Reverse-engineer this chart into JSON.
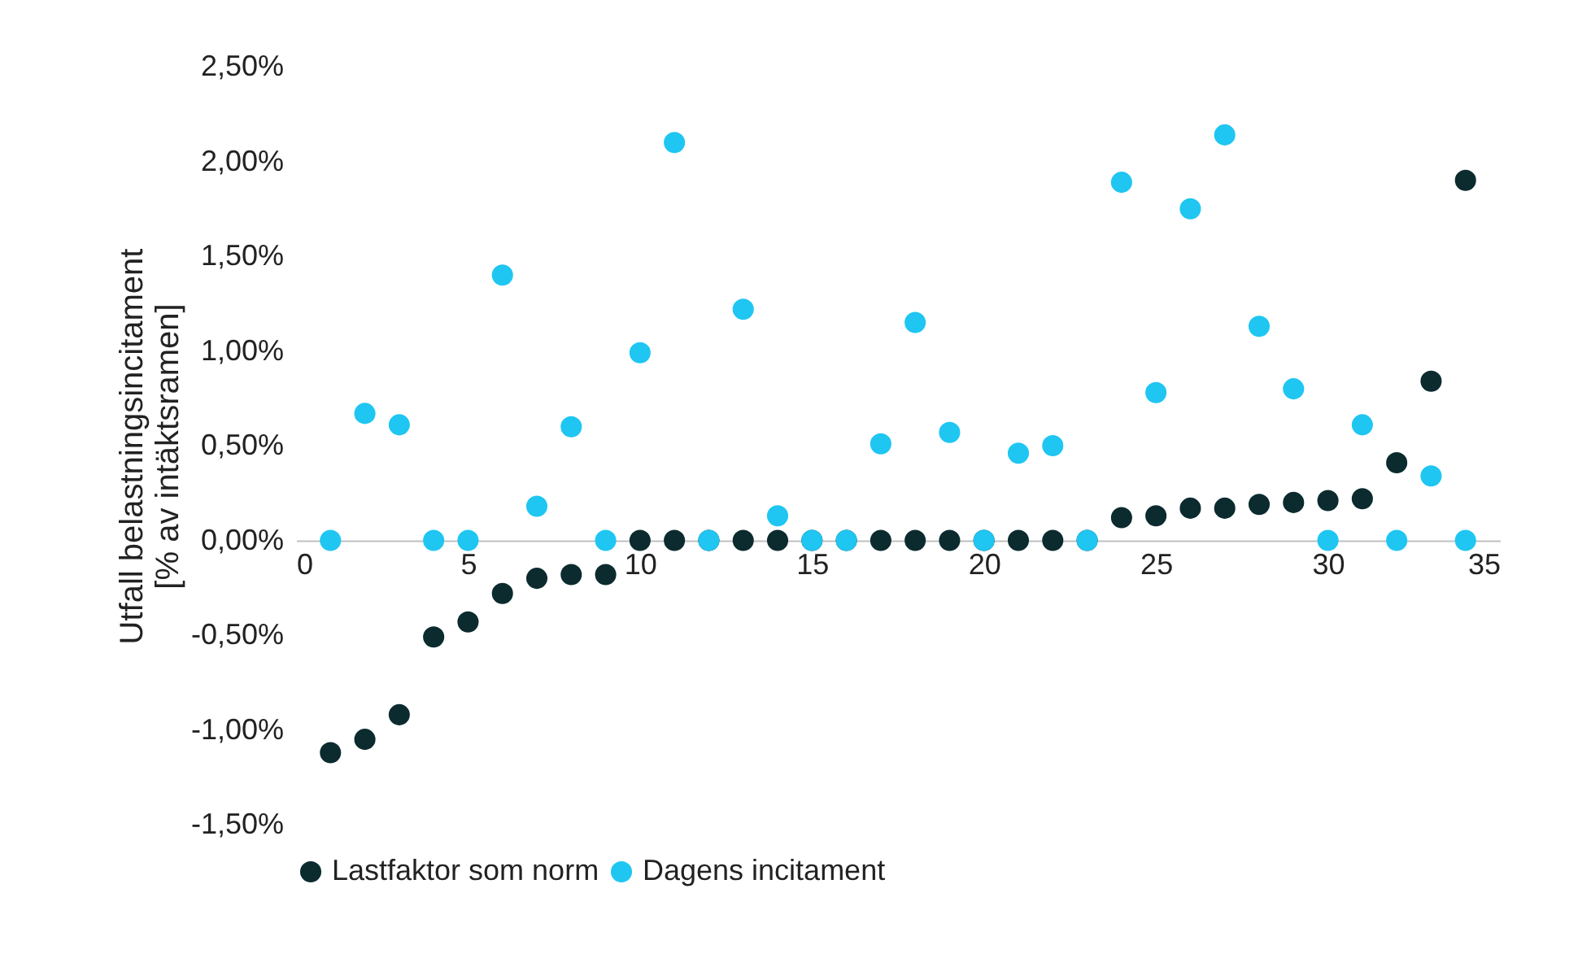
{
  "chart_data": {
    "type": "scatter",
    "ylabel": "Utfall belastningsincitament\n[% av intäktsramen]",
    "x": [
      1,
      2,
      3,
      4,
      5,
      6,
      7,
      8,
      9,
      10,
      11,
      12,
      13,
      14,
      15,
      16,
      17,
      18,
      19,
      20,
      21,
      22,
      23,
      24,
      25,
      26,
      27,
      28,
      29,
      30,
      31,
      32,
      33,
      34
    ],
    "series": [
      {
        "name": "Lastfaktor som norm",
        "color": "#0c2b2f",
        "values": [
          -1.12,
          -1.05,
          -0.92,
          -0.51,
          -0.43,
          -0.28,
          -0.2,
          -0.18,
          -0.18,
          0,
          0,
          0,
          0,
          0,
          0,
          0,
          0,
          0,
          0,
          0,
          0,
          0,
          0,
          0.12,
          0.13,
          0.17,
          0.17,
          0.19,
          0.2,
          0.21,
          0.22,
          0.41,
          0.84,
          1.9
        ]
      },
      {
        "name": "Dagens incitament",
        "color": "#1fc6f2",
        "values": [
          0,
          0.67,
          0.61,
          0,
          0,
          1.4,
          0.18,
          0.6,
          0,
          0.99,
          2.1,
          0,
          1.22,
          0.13,
          0,
          0,
          0.51,
          1.15,
          0.57,
          0,
          0.46,
          0.5,
          0,
          1.89,
          0.78,
          1.75,
          2.14,
          1.13,
          0.8,
          0,
          0.61,
          0,
          0.34,
          0
        ]
      }
    ],
    "xlim": [
      0,
      35
    ],
    "xticks": [
      0,
      5,
      10,
      15,
      20,
      25,
      30,
      35
    ],
    "ylim": [
      -1.5,
      2.5
    ],
    "yticks": [
      {
        "value": -1.5,
        "label": "-1,50%"
      },
      {
        "value": -1,
        "label": "-1,00%"
      },
      {
        "value": -0.5,
        "label": "-0,50%"
      },
      {
        "value": 0,
        "label": "0,00%"
      },
      {
        "value": 0.5,
        "label": "0,50%"
      },
      {
        "value": 1,
        "label": "1,00%"
      },
      {
        "value": 1.5,
        "label": "1,50%"
      },
      {
        "value": 2,
        "label": "2,00%"
      },
      {
        "value": 2.5,
        "label": "2,50%"
      }
    ],
    "grid": false,
    "legend": "bottom",
    "marker": "circle"
  }
}
